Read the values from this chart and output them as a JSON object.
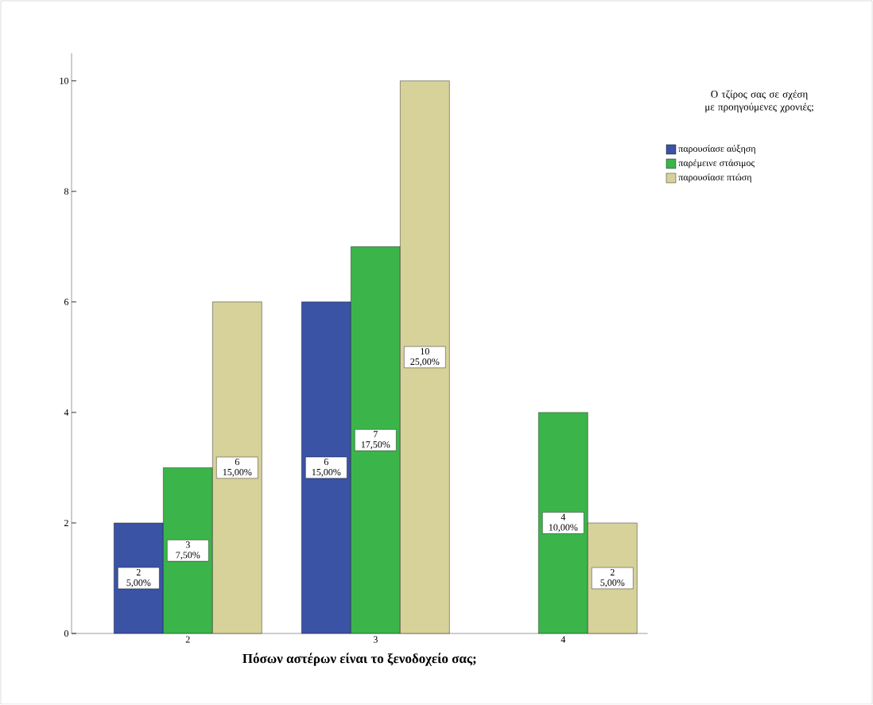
{
  "chart_data": {
    "type": "bar",
    "xlabel": "Πόσων αστέρων είναι το ξενοδοχείο σας;",
    "legend_title": "Ο τζίρος σας σε σχέση με προηγούμενες χρονιές;",
    "categories": [
      "2",
      "3",
      "4"
    ],
    "series": [
      {
        "name": "παρουσίασε αύξηση",
        "color": "#3a53a4",
        "values": [
          2,
          6,
          null
        ],
        "value_labels": [
          "2 5,00%",
          "6 15,00%",
          null
        ]
      },
      {
        "name": "παρέμεινε στάσιμος",
        "color": "#3bb54a",
        "values": [
          3,
          7,
          4
        ],
        "value_labels": [
          "3 7,50%",
          "7 17,50%",
          "4 10,00%"
        ]
      },
      {
        "name": "παρουσίασε πτώση",
        "color": "#d6d29a",
        "values": [
          6,
          10,
          2
        ],
        "value_labels": [
          "6 15,00%",
          "10 25,00%",
          "2 5,00%"
        ]
      }
    ],
    "ylim": [
      0,
      10.5
    ],
    "yticks": [
      0,
      2,
      4,
      6,
      8,
      10
    ],
    "grid": false,
    "legend": "top right"
  }
}
